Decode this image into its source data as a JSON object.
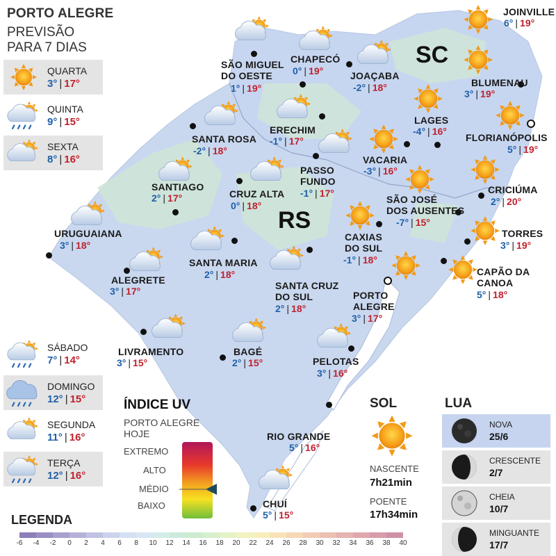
{
  "header": {
    "title": "PORTO ALEGRE",
    "subtitle_line1": "PREVISÃO",
    "subtitle_line2": "PARA 7 DIAS"
  },
  "forecast": [
    {
      "day": "QUARTA",
      "min": "3°",
      "max": "17°",
      "icon": "sun-icon"
    },
    {
      "day": "QUINTA",
      "min": "9°",
      "max": "15°",
      "icon": "rain-cloud-sun-icon"
    },
    {
      "day": "SEXTA",
      "min": "8°",
      "max": "16°",
      "icon": "cloud-sun-icon"
    },
    {
      "day": "SÁBADO",
      "min": "7°",
      "max": "14°",
      "icon": "rain-cloud-sun-icon"
    },
    {
      "day": "DOMINGO",
      "min": "12°",
      "max": "15°",
      "icon": "rain-cloud-icon"
    },
    {
      "day": "SEGUNDA",
      "min": "11°",
      "max": "16°",
      "icon": "cloud-sun-icon"
    },
    {
      "day": "TERÇA",
      "min": "12°",
      "max": "16°",
      "icon": "rain-cloud-sun-icon"
    }
  ],
  "states": {
    "sc": "SC",
    "rs": "RS"
  },
  "cities": [
    {
      "name": "JOINVILLE",
      "min": "6°",
      "max": "19°"
    },
    {
      "name": "CHAPECÓ",
      "min": "0°",
      "max": "19°"
    },
    {
      "name": "SÃO MIGUEL DO OESTE",
      "name1": "SÃO MIGUEL",
      "name2": "DO OESTE",
      "min": "1°",
      "max": "19°"
    },
    {
      "name": "JOAÇABA",
      "min": "-2°",
      "max": "18°"
    },
    {
      "name": "BLUMENAU",
      "min": "3°",
      "max": "19°"
    },
    {
      "name": "LAGES",
      "min": "-4°",
      "max": "16°"
    },
    {
      "name": "FLORIANÓPOLIS",
      "min": "5°",
      "max": "19°"
    },
    {
      "name": "ERECHIM",
      "min": "-1°",
      "max": "17°"
    },
    {
      "name": "SANTA ROSA",
      "min": "-2°",
      "max": "18°"
    },
    {
      "name": "VACARIA",
      "min": "-3°",
      "max": "16°"
    },
    {
      "name": "PASSO FUNDO",
      "name1": "PASSO",
      "name2": "FUNDO",
      "min": "-1°",
      "max": "17°"
    },
    {
      "name": "SANTIAGO",
      "min": "2°",
      "max": "17°"
    },
    {
      "name": "CRUZ ALTA",
      "min": "0°",
      "max": "18°"
    },
    {
      "name": "CRICIÚMA",
      "min": "2°",
      "max": "20°"
    },
    {
      "name": "SÃO JOSÉ DOS AUSENTES",
      "name1": "SÃO JOSÉ",
      "name2": "DOS AUSENTES",
      "min": "-7°",
      "max": "15°"
    },
    {
      "name": "URUGUAIANA",
      "min": "3°",
      "max": "18°"
    },
    {
      "name": "TORRES",
      "min": "3°",
      "max": "19°"
    },
    {
      "name": "CAXIAS DO SUL",
      "name1": "CAXIAS",
      "name2": "DO SUL",
      "min": "-1°",
      "max": "18°"
    },
    {
      "name": "SANTA MARIA",
      "min": "2°",
      "max": "18°"
    },
    {
      "name": "ALEGRETE",
      "min": "3°",
      "max": "17°"
    },
    {
      "name": "CAPÃO DA CANOA",
      "name1": "CAPÃO DA",
      "name2": "CANOA",
      "min": "5°",
      "max": "18°"
    },
    {
      "name": "SANTA CRUZ DO SUL",
      "name1": "SANTA CRUZ",
      "name2": "DO SUL",
      "min": "2°",
      "max": "18°"
    },
    {
      "name": "PORTO ALEGRE",
      "name1": "PORTO",
      "name2": "ALEGRE",
      "min": "3°",
      "max": "17°"
    },
    {
      "name": "LIVRAMENTO",
      "min": "3°",
      "max": "15°"
    },
    {
      "name": "BAGÉ",
      "min": "2°",
      "max": "15°"
    },
    {
      "name": "PELOTAS",
      "min": "3°",
      "max": "16°"
    },
    {
      "name": "RIO GRANDE",
      "min": "5°",
      "max": "16°"
    },
    {
      "name": "CHUÍ",
      "min": "5°",
      "max": "15°"
    }
  ],
  "uv": {
    "title": "ÍNDICE UV",
    "subtitle1": "PORTO ALEGRE",
    "subtitle2": "HOJE",
    "levels": [
      "EXTREMO",
      "ALTO",
      "MÉDIO",
      "BAIXO"
    ],
    "current": "MÉDIO",
    "colors": [
      "#b0165a",
      "#e8392b",
      "#f2a51f",
      "#f7e021",
      "#6fbf3a"
    ]
  },
  "sun": {
    "title": "SOL",
    "rise_label": "NASCENTE",
    "rise": "7h21min",
    "set_label": "POENTE",
    "set": "17h34min"
  },
  "moon": {
    "title": "LUA",
    "phases": [
      {
        "name": "NOVA",
        "date": "25/6"
      },
      {
        "name": "CRESCENTE",
        "date": "2/7"
      },
      {
        "name": "CHEIA",
        "date": "10/7"
      },
      {
        "name": "MINGUANTE",
        "date": "17/7"
      }
    ]
  },
  "legend": {
    "title": "LEGENDA",
    "ticks": [
      "-6",
      "-4",
      "-2",
      "0",
      "2",
      "4",
      "6",
      "8",
      "10",
      "12",
      "14",
      "16",
      "18",
      "20",
      "22",
      "24",
      "26",
      "28",
      "30",
      "32",
      "34",
      "36",
      "38",
      "40"
    ],
    "colors": [
      "#8d7fb8",
      "#9a8fc3",
      "#a8a0cd",
      "#b6b2d7",
      "#c2c3e2",
      "#cdd3ec",
      "#d4e0f3",
      "#d7e7f3",
      "#d3ece9",
      "#cceadb",
      "#cdebd0",
      "#d7efcc",
      "#e4f2c6",
      "#f1f3c0",
      "#f7eeba",
      "#f8e3b8",
      "#f6d8b6",
      "#f2ccb4",
      "#ecc0b2",
      "#e6b4b0",
      "#dfa8ad",
      "#d89caa",
      "#d091a7"
    ]
  },
  "colors": {
    "map_blue": "#c7d6f0",
    "map_green": "#cfe6d6",
    "min_temp": "#1f5fa8",
    "max_temp": "#c0212e"
  }
}
